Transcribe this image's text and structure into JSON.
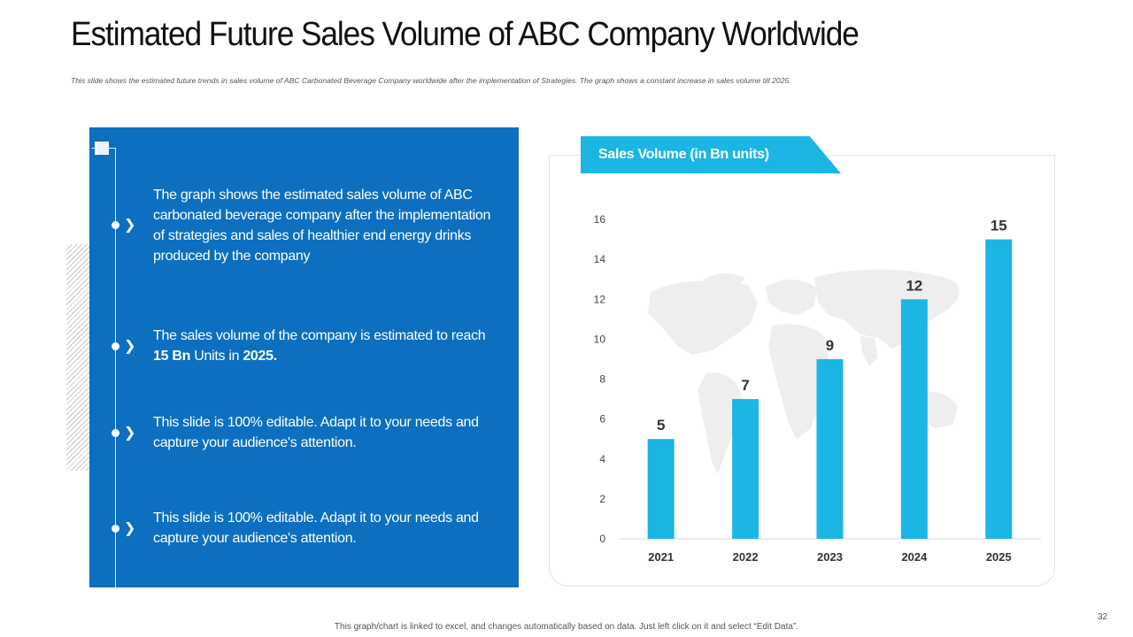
{
  "slide": {
    "title": "Estimated Future Sales Volume of ABC Company Worldwide",
    "subtitle": "This slide shows the estimated future trends in sales volume of ABC Carbonated  Beverage  Company worldwide  after the implementation  of Strategies.  The graph  shows  a constant increase  in sales volume till 2025.",
    "footer": "This graph/chart is linked to excel, and changes automatically  based on data. Just left click  on it and select  “Edit Data”.",
    "page_number": "32"
  },
  "panel": {
    "bullets": [
      {
        "text": "The graph shows the estimated sales volume of ABC carbonated beverage company after the implementation of strategies and sales of healthier end energy drinks produced by the company"
      },
      {
        "text_before": "The sales volume of the company is estimated to reach ",
        "bold1": "15 Bn",
        "text_middle": " Units in ",
        "bold2": "2025."
      },
      {
        "text": "This slide is 100% editable. Adapt it to your needs and capture your audience's attention."
      },
      {
        "text": "This slide is 100% editable. Adapt it to your needs and capture your audience's attention."
      }
    ]
  },
  "colors": {
    "panel_blue": "#0c6fc0",
    "bar_cyan": "#1bb6e4",
    "map_gray": "#eeeeee"
  },
  "chart_data": {
    "type": "bar",
    "title": "Sales Volume (in Bn units)",
    "categories": [
      "2021",
      "2022",
      "2023",
      "2024",
      "2025"
    ],
    "values": [
      5,
      7,
      9,
      12,
      15
    ],
    "data_labels": [
      "5",
      "7",
      "9",
      "12",
      "15"
    ],
    "ylim": [
      0,
      16
    ],
    "yticks": [
      0,
      2,
      4,
      6,
      8,
      10,
      12,
      14,
      16
    ],
    "xlabel": "",
    "ylabel": "",
    "grid": false,
    "background": "world-map"
  }
}
